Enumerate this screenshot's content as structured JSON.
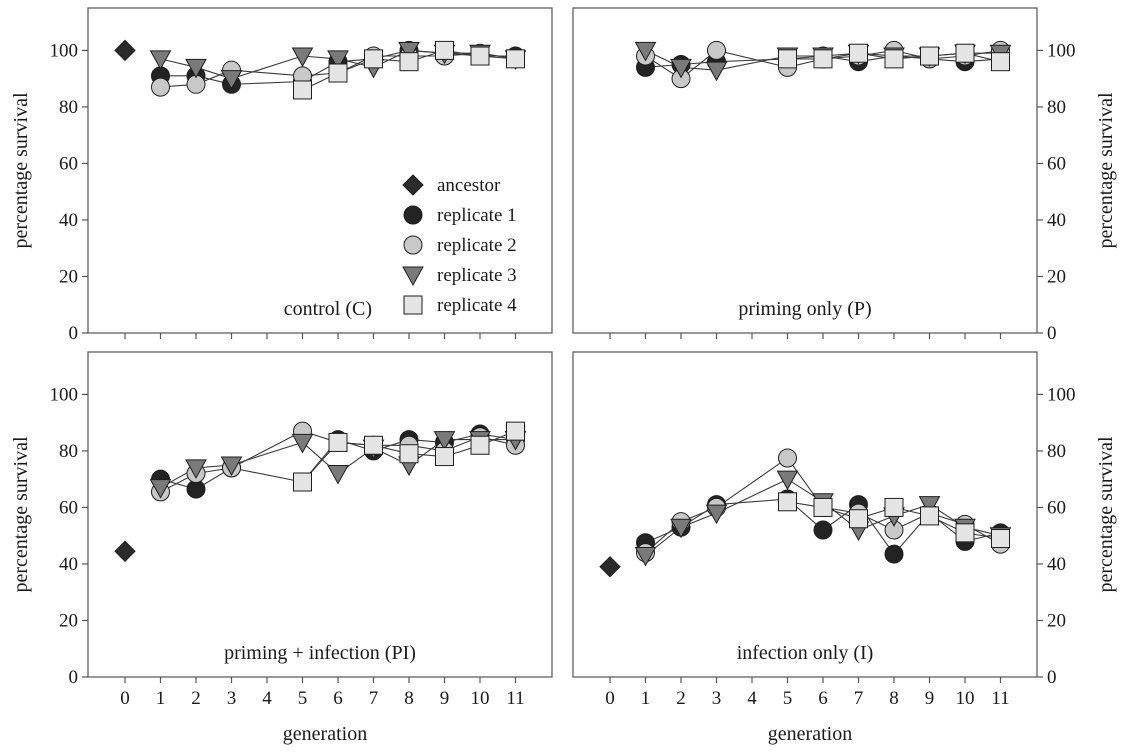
{
  "figure": {
    "ylabel": "percentage survival",
    "xlabel": "generation"
  },
  "legend": [
    {
      "name": "ancestor",
      "marker": "diamond",
      "fill": "#2b2b2b"
    },
    {
      "name": "replicate 1",
      "marker": "circle",
      "fill": "#232323"
    },
    {
      "name": "replicate 2",
      "marker": "circle",
      "fill": "#c8c8c8"
    },
    {
      "name": "replicate 3",
      "marker": "triangle-down",
      "fill": "#7a7a7a"
    },
    {
      "name": "replicate 4",
      "marker": "square",
      "fill": "#e4e4e4"
    }
  ],
  "chart_data": [
    {
      "type": "line",
      "panel_label": "control (C)",
      "xlabel": "generation",
      "ylabel": "percentage survival",
      "ylim": [
        0,
        115
      ],
      "xlim": [
        0,
        11
      ],
      "x_ticks": [
        0,
        1,
        2,
        3,
        4,
        5,
        6,
        7,
        8,
        9,
        10,
        11
      ],
      "y_ticks": [
        0,
        20,
        40,
        60,
        80,
        100
      ],
      "ancestor": {
        "x": 0,
        "y": 100
      },
      "series": [
        {
          "name": "replicate 1",
          "x": [
            1,
            2,
            3,
            5,
            6,
            7,
            8,
            9,
            10,
            11
          ],
          "y": [
            91,
            91,
            88,
            89,
            96,
            97,
            100,
            99,
            98,
            98
          ]
        },
        {
          "name": "replicate 2",
          "x": [
            1,
            2,
            3,
            5,
            6,
            7,
            8,
            9,
            10,
            11
          ],
          "y": [
            87,
            88,
            93,
            91,
            92,
            98,
            98,
            98,
            99,
            97
          ]
        },
        {
          "name": "replicate 3",
          "x": [
            1,
            2,
            3,
            5,
            6,
            7,
            8,
            9,
            10,
            11
          ],
          "y": [
            97,
            94,
            90,
            98,
            97,
            94,
            100,
            99,
            99,
            97
          ]
        },
        {
          "name": "replicate 4",
          "x": [
            5,
            6,
            7,
            8,
            9,
            10,
            11
          ],
          "y": [
            86,
            92,
            97,
            96,
            100,
            98,
            97
          ]
        }
      ],
      "legend": "center-right"
    },
    {
      "type": "line",
      "panel_label": "priming only (P)",
      "xlabel": "generation",
      "ylabel": "percentage survival",
      "ylim": [
        0,
        115
      ],
      "xlim": [
        0,
        11
      ],
      "x_ticks": [
        0,
        1,
        2,
        3,
        4,
        5,
        6,
        7,
        8,
        9,
        10,
        11
      ],
      "y_ticks": [
        0,
        20,
        40,
        60,
        80,
        100
      ],
      "series": [
        {
          "name": "replicate 1",
          "x": [
            1,
            2,
            3,
            5,
            6,
            7,
            8,
            9,
            10,
            11
          ],
          "y": [
            94,
            95,
            96,
            97,
            98,
            96,
            98,
            97,
            96,
            97
          ]
        },
        {
          "name": "replicate 2",
          "x": [
            1,
            2,
            3,
            5,
            6,
            7,
            8,
            9,
            10,
            11
          ],
          "y": [
            98,
            90,
            100,
            94,
            97,
            98,
            100,
            97,
            98,
            100
          ]
        },
        {
          "name": "replicate 3",
          "x": [
            1,
            2,
            3,
            5,
            6,
            7,
            8,
            9,
            10,
            11
          ],
          "y": [
            100,
            94,
            93,
            98,
            98,
            99,
            98,
            98,
            99,
            99
          ]
        },
        {
          "name": "replicate 4",
          "x": [
            5,
            6,
            7,
            8,
            9,
            10,
            11
          ],
          "y": [
            97,
            97,
            99,
            97,
            98,
            99,
            96
          ]
        }
      ]
    },
    {
      "type": "line",
      "panel_label": "priming + infection (PI)",
      "xlabel": "generation",
      "ylabel": "percentage survival",
      "ylim": [
        0,
        115
      ],
      "xlim": [
        0,
        11
      ],
      "x_ticks": [
        0,
        1,
        2,
        3,
        4,
        5,
        6,
        7,
        8,
        9,
        10,
        11
      ],
      "y_ticks": [
        0,
        20,
        40,
        60,
        80,
        100
      ],
      "ancestor": {
        "x": 0,
        "y": 44.5
      },
      "series": [
        {
          "name": "replicate 1",
          "x": [
            1,
            2,
            3,
            5,
            6,
            7,
            8,
            9,
            10,
            11
          ],
          "y": [
            70,
            66.5,
            74,
            69,
            84,
            80,
            84,
            83,
            86,
            84
          ]
        },
        {
          "name": "replicate 2",
          "x": [
            1,
            2,
            3,
            5,
            6,
            7,
            8,
            9,
            10,
            11
          ],
          "y": [
            65.5,
            72,
            74,
            87,
            83,
            82,
            82,
            80,
            85,
            82
          ]
        },
        {
          "name": "replicate 3",
          "x": [
            1,
            2,
            3,
            5,
            6,
            7,
            8,
            9,
            10,
            11
          ],
          "y": [
            67,
            74,
            75,
            83,
            72,
            81,
            75,
            84,
            84,
            84
          ]
        },
        {
          "name": "replicate 4",
          "x": [
            5,
            6,
            7,
            8,
            9,
            10,
            11
          ],
          "y": [
            69,
            83,
            82,
            79,
            78,
            82,
            87
          ]
        }
      ]
    },
    {
      "type": "line",
      "panel_label": "infection only (I)",
      "xlabel": "generation",
      "ylabel": "percentage survival",
      "ylim": [
        0,
        115
      ],
      "xlim": [
        0,
        11
      ],
      "x_ticks": [
        0,
        1,
        2,
        3,
        4,
        5,
        6,
        7,
        8,
        9,
        10,
        11
      ],
      "y_ticks": [
        0,
        20,
        40,
        60,
        80,
        100
      ],
      "ancestor": {
        "x": 0,
        "y": 39
      },
      "series": [
        {
          "name": "replicate 1",
          "x": [
            1,
            2,
            3,
            5,
            6,
            7,
            8,
            9,
            10,
            11
          ],
          "y": [
            47.5,
            53,
            61,
            63,
            52,
            61,
            43.5,
            58,
            48,
            51
          ]
        },
        {
          "name": "replicate 2",
          "x": [
            1,
            2,
            3,
            5,
            6,
            7,
            8,
            9,
            10,
            11
          ],
          "y": [
            44,
            55,
            60,
            77.5,
            60,
            58,
            52,
            58,
            54,
            47
          ]
        },
        {
          "name": "replicate 3",
          "x": [
            1,
            2,
            3,
            5,
            6,
            7,
            8,
            9,
            10,
            11
          ],
          "y": [
            43,
            53,
            58,
            70,
            62,
            52,
            57,
            61,
            53,
            50
          ]
        },
        {
          "name": "replicate 4",
          "x": [
            5,
            6,
            7,
            8,
            9,
            10,
            11
          ],
          "y": [
            62,
            60,
            56,
            60,
            57,
            51,
            49
          ]
        }
      ]
    }
  ]
}
